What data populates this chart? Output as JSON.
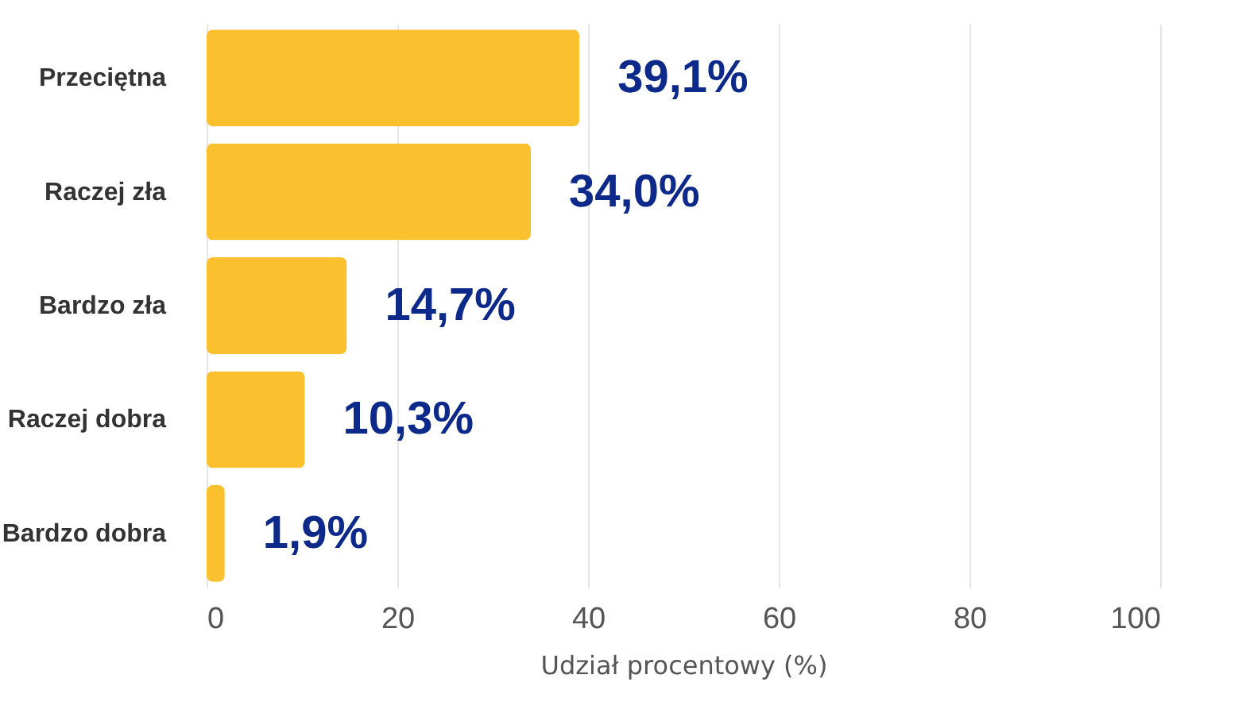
{
  "chart_data": {
    "type": "bar",
    "orientation": "horizontal",
    "xlabel": "Udział procentowy (%)",
    "categories": [
      "Przeciętna",
      "Raczej zła",
      "Bardzo zła",
      "Raczej dobra",
      "Bardzo dobra"
    ],
    "values": [
      39.1,
      34.0,
      14.7,
      10.3,
      1.9
    ],
    "value_labels": [
      "39,1%",
      "34,0%",
      "14,7%",
      "10,3%",
      "1,9%"
    ],
    "color": "#fbc02d",
    "xlim": [
      0,
      100
    ],
    "xticks": [
      0,
      20,
      40,
      60,
      80,
      100
    ],
    "grid": "x"
  }
}
